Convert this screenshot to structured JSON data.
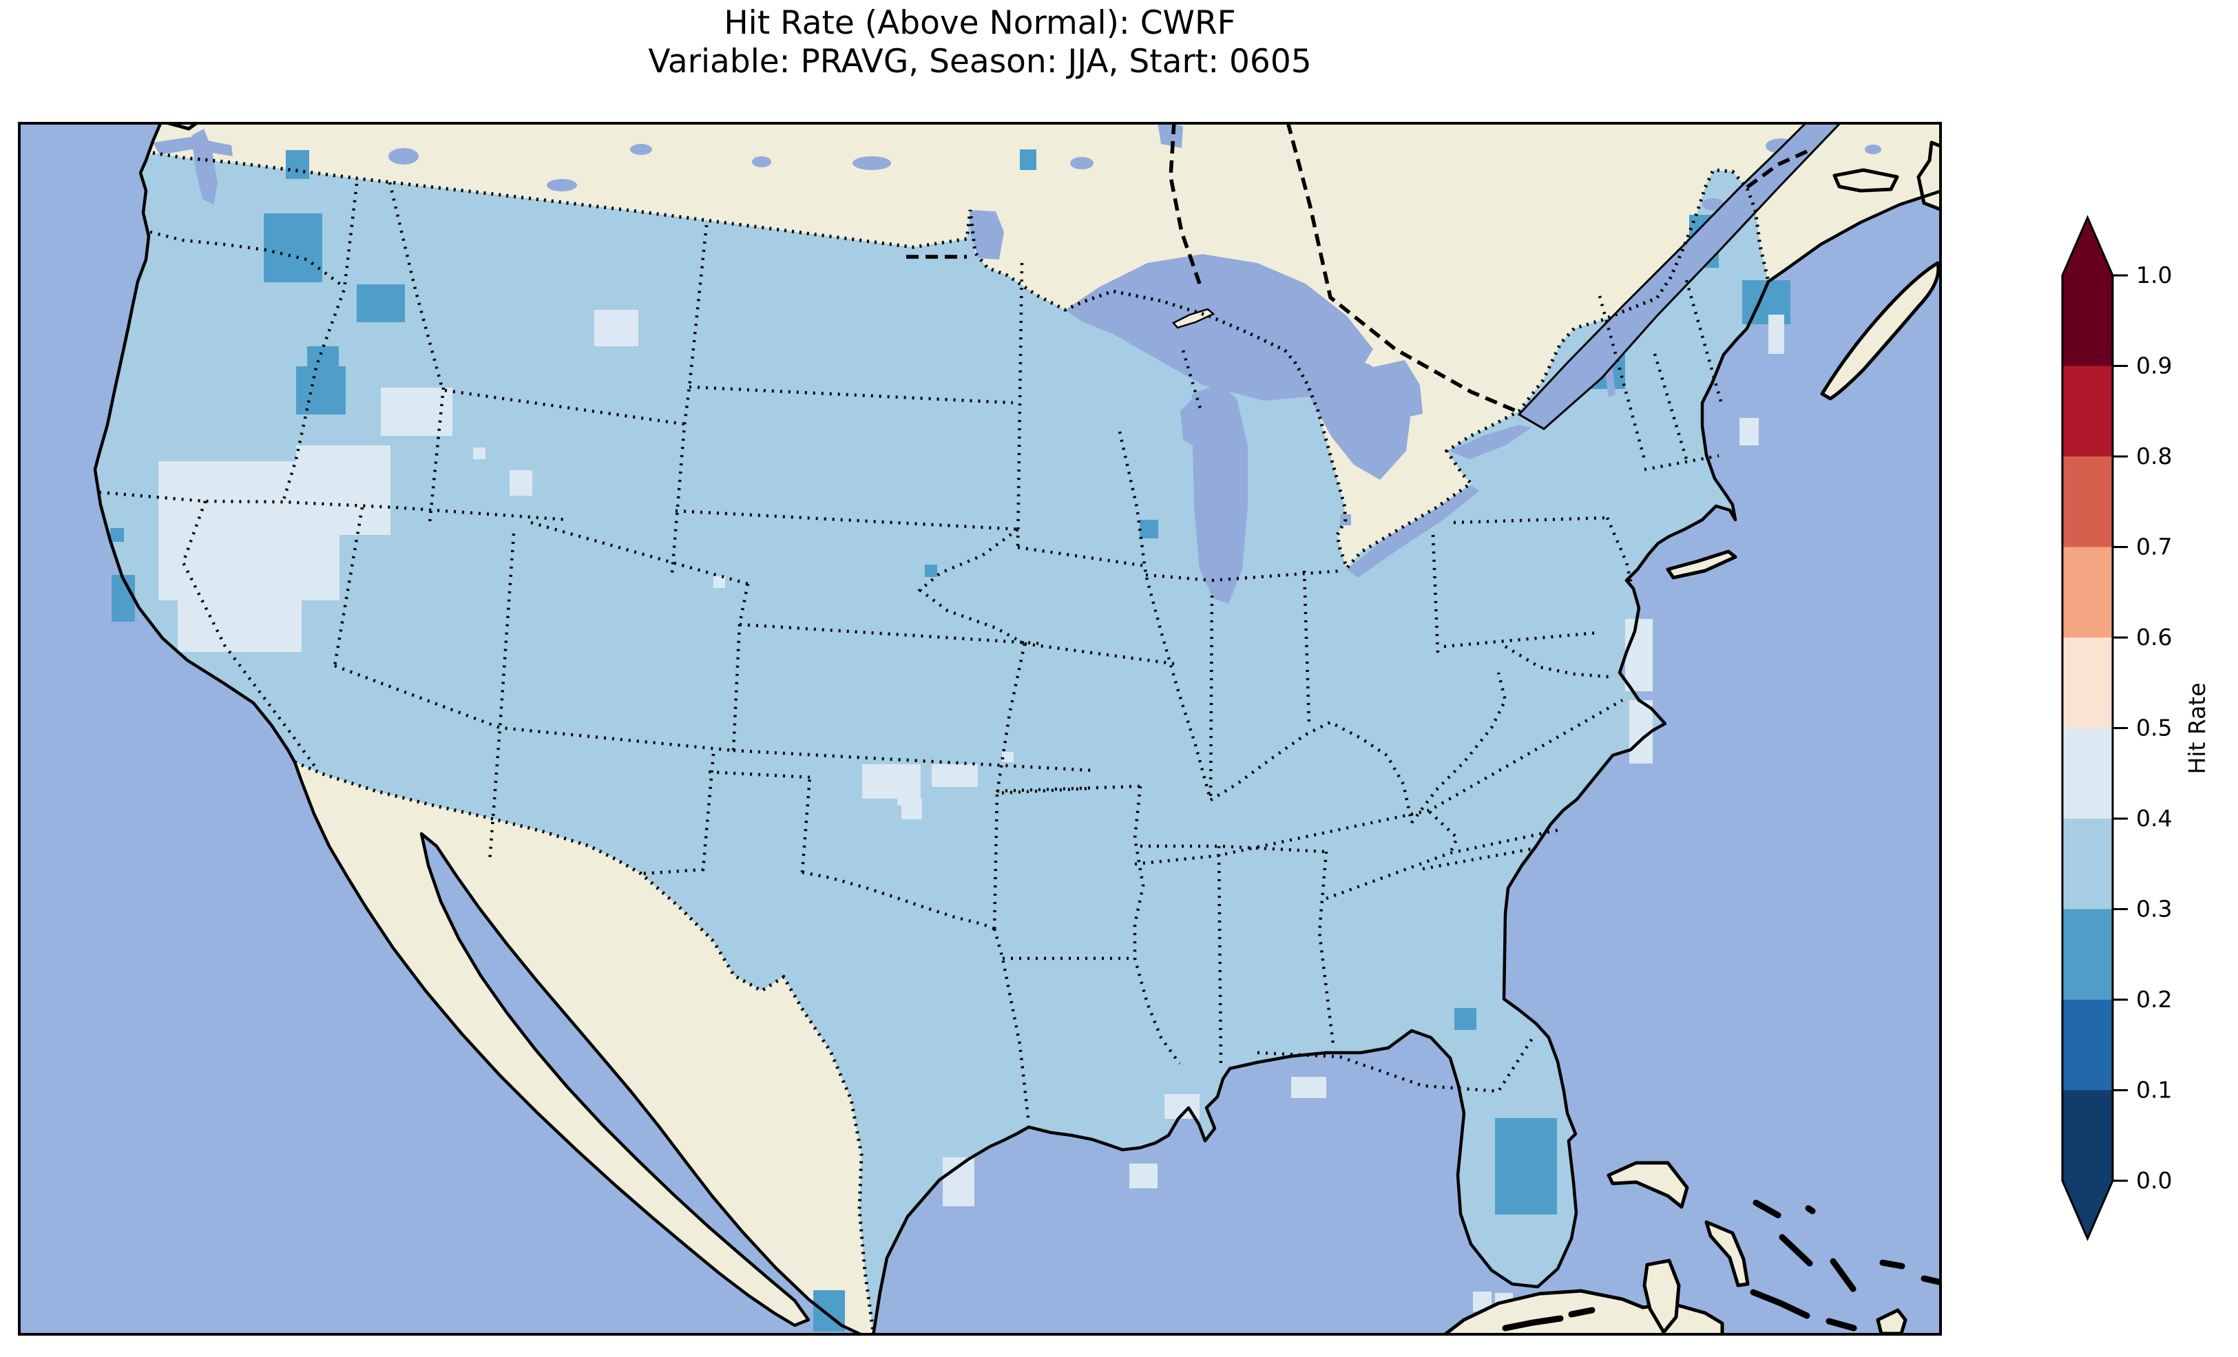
{
  "title": {
    "line1": "Hit Rate (Above Normal): CWRF",
    "line2": "Variable: PRAVG, Season: JJA, Start: 0605"
  },
  "colorbar": {
    "label": "Hit Rate",
    "tick_labels": [
      "1.0",
      "0.9",
      "0.8",
      "0.7",
      "0.6",
      "0.5",
      "0.4",
      "0.3",
      "0.2",
      "0.1",
      "0.0"
    ],
    "segments_top_to_bottom": [
      {
        "range": "0.9-1.0",
        "color": "#67001f"
      },
      {
        "range": "0.8-0.9",
        "color": "#b2182b"
      },
      {
        "range": "0.7-0.8",
        "color": "#d6604d"
      },
      {
        "range": "0.6-0.7",
        "color": "#f4a582"
      },
      {
        "range": "0.5-0.6",
        "color": "#fbe3d4"
      },
      {
        "range": "0.4-0.5",
        "color": "#dce9f2"
      },
      {
        "range": "0.3-0.4",
        "color": "#a6cde3"
      },
      {
        "range": "0.2-0.3",
        "color": "#4f9eca"
      },
      {
        "range": "0.1-0.2",
        "color": "#2468ac"
      },
      {
        "range": "0.0-0.1",
        "color": "#113c6c"
      }
    ],
    "extend_over_color": "#67001f",
    "extend_under_color": "#113c6c"
  },
  "map": {
    "colors": {
      "ocean": "#98b3e0",
      "land": "#f0eedb",
      "lakes": "#93abdb",
      "us_base_fill": "#a6cde3",
      "coastline": "#000000",
      "borders": "#000000"
    },
    "base_bin": "0.3-0.4"
  },
  "chart_data": {
    "type": "heatmap",
    "title": "Hit Rate (Above Normal): CWRF",
    "subtitle": "Variable: PRAVG, Season: JJA, Start: 0605",
    "model": "CWRF",
    "category": "Above Normal",
    "variable": "PRAVG",
    "season": "JJA",
    "start": "0605",
    "colorbar_label": "Hit Rate",
    "ticks": [
      1.0,
      0.9,
      0.8,
      0.7,
      0.6,
      0.5,
      0.4,
      0.3,
      0.2,
      0.1,
      0.0
    ],
    "bin_edges": [
      0.0,
      0.1,
      0.2,
      0.3,
      0.4,
      0.5,
      0.6,
      0.7,
      0.8,
      0.9,
      1.0
    ],
    "bin_colors_low_to_high": [
      "#113c6c",
      "#2468ac",
      "#4f9eca",
      "#a6cde3",
      "#dce9f2",
      "#fbe3d4",
      "#f4a582",
      "#d6604d",
      "#b2182b",
      "#67001f"
    ],
    "dominant_value_bin": "0.3-0.4",
    "regions_summary": [
      {
        "region": "Most of contiguous US",
        "bin": "0.3-0.4"
      },
      {
        "region": "Central/NE Washington, Idaho panhandle",
        "bin": "0.2-0.3"
      },
      {
        "region": "Nevada / Great Basin and SE Oregon-SW Idaho",
        "bin": "0.4-0.5"
      },
      {
        "region": "Kansas-Oklahoma border cells",
        "bin": "0.4-0.5"
      },
      {
        "region": "South-central Florida",
        "bin": "0.2-0.3"
      },
      {
        "region": "Northern and eastern Maine, NY-VT border",
        "bin": "0.2-0.3"
      },
      {
        "region": "Scattered Gulf coast and Florida Keys cells",
        "bin": "0.4-0.5"
      },
      {
        "region": "Sierra Nevada California cells",
        "bin": "0.2-0.3"
      }
    ],
    "grid_cells_note": "columns: x, y, w, h (map-local px, 2794x1763 viewBox), value_bin",
    "grid_cells": [
      [
        389,
        41,
        34,
        42,
        "0.2-0.3"
      ],
      [
        357,
        133,
        85,
        100,
        "0.2-0.3"
      ],
      [
        492,
        236,
        70,
        55,
        "0.2-0.3"
      ],
      [
        420,
        326,
        46,
        30,
        "0.2-0.3"
      ],
      [
        404,
        355,
        72,
        70,
        "0.2-0.3"
      ],
      [
        134,
        590,
        20,
        20,
        "0.2-0.3"
      ],
      [
        136,
        658,
        34,
        68,
        "0.2-0.3"
      ],
      [
        1455,
        40,
        24,
        30,
        "0.2-0.3"
      ],
      [
        1317,
        643,
        18,
        18,
        "0.2-0.3"
      ],
      [
        1629,
        578,
        27,
        27,
        "0.2-0.3"
      ],
      [
        2427,
        135,
        43,
        77,
        "0.2-0.3"
      ],
      [
        2504,
        230,
        70,
        64,
        "0.2-0.3"
      ],
      [
        2274,
        337,
        60,
        51,
        "0.2-0.3"
      ],
      [
        2145,
        1447,
        90,
        140,
        "0.2-0.3"
      ],
      [
        2086,
        1287,
        32,
        32,
        "0.2-0.3"
      ],
      [
        1155,
        1697,
        46,
        60,
        "0.2-0.3"
      ],
      [
        404,
        470,
        137,
        63,
        "0.4-0.5"
      ],
      [
        204,
        493,
        337,
        107,
        "0.4-0.5"
      ],
      [
        204,
        600,
        263,
        95,
        "0.4-0.5"
      ],
      [
        232,
        695,
        180,
        75,
        "0.4-0.5"
      ],
      [
        527,
        386,
        104,
        70,
        "0.4-0.5"
      ],
      [
        837,
        273,
        64,
        53,
        "0.4-0.5"
      ],
      [
        661,
        473,
        18,
        17,
        "0.4-0.5"
      ],
      [
        714,
        506,
        33,
        37,
        "0.4-0.5"
      ],
      [
        1010,
        660,
        17,
        17,
        "0.4-0.5"
      ],
      [
        1226,
        933,
        85,
        50,
        "0.4-0.5"
      ],
      [
        1327,
        933,
        67,
        33,
        "0.4-0.5"
      ],
      [
        1429,
        915,
        17,
        15,
        "0.4-0.5"
      ],
      [
        1283,
        983,
        30,
        30,
        "0.4-0.5"
      ],
      [
        1277,
        973,
        20,
        20,
        "0.4-0.5"
      ],
      [
        1343,
        1504,
        46,
        71,
        "0.4-0.5"
      ],
      [
        1614,
        1513,
        41,
        36,
        "0.4-0.5"
      ],
      [
        1665,
        1412,
        51,
        36,
        "0.4-0.5"
      ],
      [
        1849,
        1387,
        51,
        31,
        "0.4-0.5"
      ],
      [
        2113,
        1699,
        27,
        29,
        "0.4-0.5"
      ],
      [
        2145,
        1701,
        26,
        27,
        "0.4-0.5"
      ],
      [
        2178,
        1707,
        29,
        27,
        "0.4-0.5"
      ],
      [
        2334,
        722,
        40,
        105,
        "0.4-0.5"
      ],
      [
        2340,
        840,
        34,
        92,
        "0.4-0.5"
      ],
      [
        2542,
        280,
        23,
        57,
        "0.4-0.5"
      ],
      [
        2500,
        430,
        28,
        40,
        "0.4-0.5"
      ]
    ]
  }
}
